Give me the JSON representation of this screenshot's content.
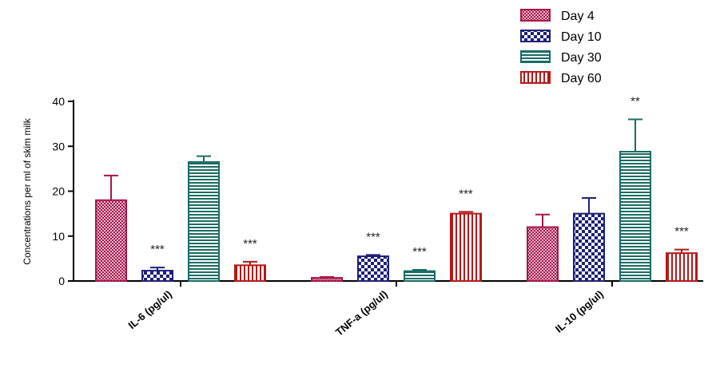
{
  "chart_data": {
    "type": "bar",
    "ylabel": "Concentrations per ml of skim milk",
    "ylim": [
      0,
      40
    ],
    "yticks": [
      0,
      10,
      20,
      30,
      40
    ],
    "categories": [
      "IL-6 (pg/ul)",
      "TNF-a (pg/ul)",
      "IL-10 (pg/ul)"
    ],
    "series": [
      {
        "name": "Day 4",
        "color": "#a8164a",
        "pattern": "dots",
        "values": [
          18,
          0.7,
          12
        ],
        "errors": [
          5.5,
          0.2,
          2.8
        ]
      },
      {
        "name": "Day 10",
        "color": "#1f1f7a",
        "pattern": "checker",
        "values": [
          2.3,
          5.5,
          15
        ],
        "errors": [
          0.7,
          0.3,
          3.5
        ]
      },
      {
        "name": "Day 30",
        "color": "#1a6b63",
        "pattern": "hlines",
        "values": [
          26.5,
          2.2,
          28.8
        ],
        "errors": [
          1.3,
          0.3,
          7.2
        ]
      },
      {
        "name": "Day 60",
        "color": "#b51818",
        "pattern": "vlines",
        "values": [
          3.5,
          15,
          6.2
        ],
        "errors": [
          0.8,
          0.4,
          0.8
        ]
      }
    ],
    "annotations": [
      {
        "category": 0,
        "series": 1,
        "text": "***"
      },
      {
        "category": 0,
        "series": 3,
        "text": "***"
      },
      {
        "category": 1,
        "series": 1,
        "text": "***"
      },
      {
        "category": 1,
        "series": 2,
        "text": "***"
      },
      {
        "category": 1,
        "series": 3,
        "text": "***"
      },
      {
        "category": 2,
        "series": 2,
        "text": "**"
      },
      {
        "category": 2,
        "series": 3,
        "text": "***"
      }
    ],
    "legend_position": "top-right",
    "grid": false
  }
}
